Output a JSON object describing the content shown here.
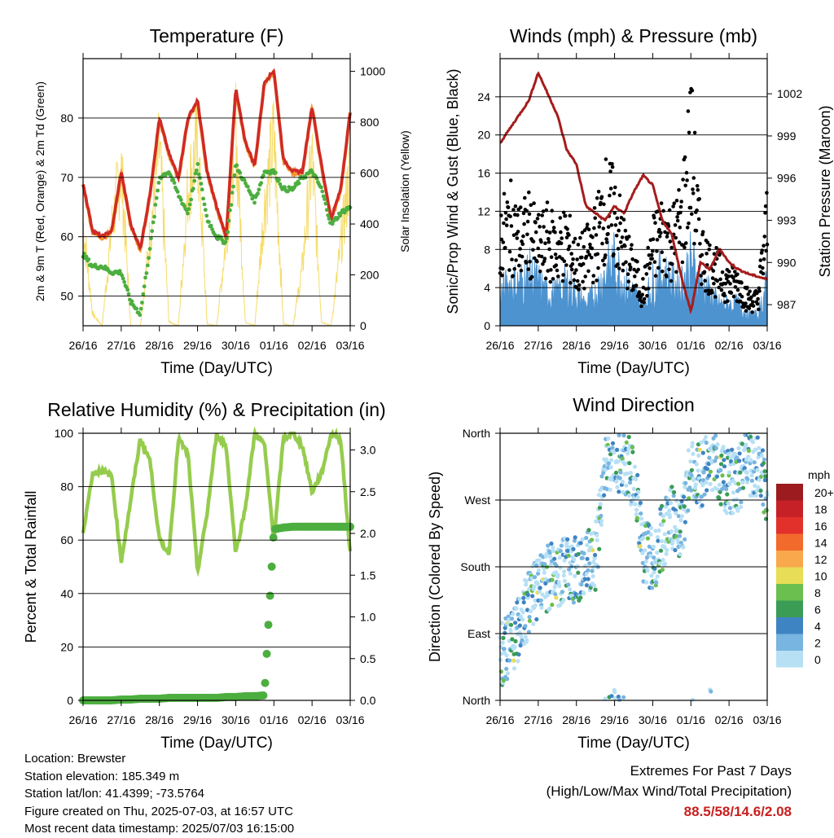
{
  "x_ticks": [
    "26/16",
    "27/16",
    "28/16",
    "29/16",
    "30/16",
    "01/16",
    "02/16",
    "03/16"
  ],
  "panels": {
    "temperature": {
      "title": "Temperature (F)",
      "ylabel": "2m & 9m T (Red, Orange) & 2m Td (Green)",
      "y2label": "Solar Insolation (Yellow)",
      "xlabel": "Time (Day/UTC)",
      "y_ticks": [
        "50",
        "60",
        "70",
        "80"
      ],
      "y2_ticks": [
        "0",
        "200",
        "400",
        "600",
        "800",
        "1000"
      ]
    },
    "winds": {
      "title": "Winds (mph) & Pressure (mb)",
      "ylabel": "Sonic/Prop Wind & Gust (Blue, Black)",
      "y2label": "Station Pressure (Maroon)",
      "xlabel": "Time (Day/UTC)",
      "y_ticks": [
        "0",
        "4",
        "8",
        "12",
        "16",
        "20",
        "24"
      ],
      "y2_ticks": [
        "987",
        "990",
        "993",
        "996",
        "999",
        "1002"
      ]
    },
    "humidity": {
      "title": "Relative Humidity (%) & Precipitation (in)",
      "ylabel": "Percent & Total Rainfall",
      "xlabel": "Time (Day/UTC)",
      "y_ticks": [
        "0",
        "20",
        "40",
        "60",
        "80",
        "100"
      ],
      "y2_ticks": [
        "0.0",
        "0.5",
        "1.0",
        "1.5",
        "2.0",
        "2.5",
        "3.0"
      ]
    },
    "direction": {
      "title": "Wind Direction",
      "ylabel": "Direction (Colored By Speed)",
      "xlabel": "Time (Day/UTC)",
      "y_ticks": [
        "North",
        "East",
        "South",
        "West",
        "North"
      ],
      "legend_title": "mph",
      "legend_labels": [
        "20+",
        "18",
        "16",
        "14",
        "12",
        "10",
        "8",
        "6",
        "4",
        "2",
        "0"
      ],
      "legend_colors": [
        "#9b1b1e",
        "#c62127",
        "#e2312b",
        "#f26a2c",
        "#f9a84b",
        "#e8dd57",
        "#6bbf4e",
        "#3a9c55",
        "#3f84c2",
        "#78b5e0",
        "#b7e0f5"
      ]
    }
  },
  "colors": {
    "temp_2m": "#cf2a27",
    "temp_9m": "#f59432",
    "dewpoint": "#4cae3f",
    "solar": "#f5dc6b",
    "wind": "#4d93d0",
    "gust": "#000000",
    "pressure": "#a61c1c",
    "rh": "#96cc4e",
    "precip": "#4cae3f"
  },
  "chart_data": [
    {
      "type": "line",
      "title": "Temperature (F)",
      "x": [
        "26/16",
        "26/22",
        "27/04",
        "27/10",
        "27/16",
        "27/22",
        "28/04",
        "28/10",
        "28/16",
        "28/22",
        "29/04",
        "29/10",
        "29/16",
        "29/22",
        "30/04",
        "30/10",
        "30/16",
        "30/22",
        "01/04",
        "01/10",
        "01/16",
        "01/22",
        "02/04",
        "02/10",
        "02/16",
        "02/22",
        "03/04",
        "03/10",
        "03/16"
      ],
      "series": [
        {
          "name": "2m T",
          "values": [
            69,
            61,
            60,
            61,
            71,
            62,
            58,
            67,
            80,
            74,
            70,
            80,
            83,
            71,
            65,
            60,
            85,
            76,
            72,
            86,
            88,
            73,
            71,
            71,
            82,
            72,
            63,
            68,
            81
          ]
        },
        {
          "name": "2m Td",
          "values": [
            57,
            55,
            55,
            54,
            54,
            49,
            47,
            58,
            70,
            71,
            67,
            64,
            72,
            63,
            60,
            59,
            72,
            69,
            66,
            71,
            71,
            68,
            68,
            70,
            71,
            68,
            62,
            64,
            65
          ]
        },
        {
          "name": "Solar Insolation",
          "axis": "right",
          "values": [
            520,
            60,
            0,
            500,
            800,
            0,
            0,
            450,
            900,
            20,
            0,
            700,
            920,
            10,
            0,
            450,
            1000,
            20,
            0,
            600,
            950,
            10,
            0,
            300,
            850,
            20,
            0,
            400,
            800
          ]
        }
      ],
      "ylim": [
        45,
        90
      ],
      "y2lim": [
        0,
        1050
      ]
    },
    {
      "type": "line",
      "title": "Winds (mph) & Pressure (mb)",
      "x": [
        "26/16",
        "26/22",
        "27/04",
        "27/10",
        "27/16",
        "27/22",
        "28/04",
        "28/10",
        "28/16",
        "28/22",
        "29/04",
        "29/10",
        "29/16",
        "29/22",
        "30/04",
        "30/10",
        "30/16",
        "30/22",
        "01/04",
        "01/10",
        "01/16",
        "01/22",
        "02/04",
        "02/10",
        "02/16",
        "02/22",
        "03/04",
        "03/10",
        "03/16"
      ],
      "series": [
        {
          "name": "Wind",
          "values": [
            3,
            4,
            4,
            5,
            4,
            3,
            3,
            4,
            3,
            2,
            3,
            5,
            6,
            4,
            3,
            2,
            4,
            5,
            4,
            4,
            6,
            4,
            3,
            2,
            2,
            2,
            1,
            1,
            4
          ]
        },
        {
          "name": "Gust",
          "values": [
            10,
            12,
            10,
            11,
            9,
            10,
            9,
            10,
            7,
            8,
            10,
            14,
            13,
            9,
            6,
            4,
            9,
            11,
            10,
            12,
            21,
            9,
            7,
            6,
            5,
            5,
            3,
            3,
            12
          ]
        },
        {
          "name": "Pressure",
          "axis": "right",
          "values": [
            998.5,
            999.5,
            1000.5,
            1001.5,
            1003.5,
            1002,
            1000.5,
            998,
            997,
            994,
            993.5,
            993,
            994,
            993.5,
            995,
            996.2,
            995.5,
            993,
            992,
            989,
            986.5,
            990,
            989.5,
            991,
            990,
            989.5,
            989.2,
            989,
            988.8
          ]
        }
      ],
      "ylim": [
        0,
        28
      ],
      "y2lim": [
        985.5,
        1004.5
      ]
    },
    {
      "type": "line",
      "title": "Relative Humidity (%) & Precipitation (in)",
      "x": [
        "26/16",
        "26/22",
        "27/04",
        "27/10",
        "27/16",
        "27/22",
        "28/04",
        "28/10",
        "28/16",
        "28/22",
        "29/04",
        "29/10",
        "29/16",
        "29/22",
        "30/04",
        "30/10",
        "30/16",
        "30/22",
        "01/04",
        "01/10",
        "01/16",
        "01/22",
        "02/04",
        "02/10",
        "02/16",
        "02/22",
        "03/04",
        "03/10",
        "03/16"
      ],
      "series": [
        {
          "name": "Relative Humidity",
          "values": [
            63,
            85,
            86,
            84,
            52,
            75,
            98,
            90,
            60,
            55,
            98,
            92,
            48,
            70,
            100,
            95,
            55,
            72,
            100,
            96,
            60,
            98,
            100,
            95,
            78,
            85,
            100,
            98,
            55
          ]
        },
        {
          "name": "Total Precipitation",
          "axis": "right",
          "values": [
            0,
            0,
            0,
            0,
            0.01,
            0.01,
            0.02,
            0.02,
            0.02,
            0.03,
            0.03,
            0.03,
            0.03,
            0.03,
            0.03,
            0.04,
            0.04,
            0.05,
            0.05,
            0.06,
            2.05,
            2.07,
            2.08,
            2.08,
            2.08,
            2.08,
            2.08,
            2.08,
            2.08
          ]
        }
      ],
      "ylim": [
        0,
        100
      ],
      "y2lim": [
        0,
        3.2
      ]
    },
    {
      "type": "scatter",
      "title": "Wind Direction",
      "x": [
        "26/16",
        "26/22",
        "27/04",
        "27/10",
        "27/16",
        "27/22",
        "28/04",
        "28/10",
        "28/16",
        "28/22",
        "29/04",
        "29/10",
        "29/16",
        "29/22",
        "30/04",
        "30/10",
        "30/16",
        "30/22",
        "01/04",
        "01/10",
        "01/16",
        "01/22",
        "02/04",
        "02/10",
        "02/16",
        "02/22",
        "03/04",
        "03/10",
        "03/16"
      ],
      "series": [
        {
          "name": "Direction",
          "values": [
            60,
            70,
            100,
            130,
            150,
            165,
            170,
            180,
            175,
            185,
            190,
            320,
            330,
            320,
            300,
            200,
            190,
            220,
            250,
            230,
            320,
            300,
            330,
            310,
            290,
            300,
            320,
            310,
            280
          ]
        }
      ],
      "ylim": [
        0,
        360
      ],
      "yticks": [
        "North",
        "East",
        "South",
        "West",
        "North"
      ],
      "colorbar": {
        "label": "mph",
        "levels": [
          "20+",
          "18",
          "16",
          "14",
          "12",
          "10",
          "8",
          "6",
          "4",
          "2",
          "0"
        ]
      }
    }
  ],
  "footer": {
    "location": "Location: Brewster",
    "elevation": "Station elevation: 185.349 m",
    "latlon": "Station lat/lon: 41.4399; -73.5764",
    "created": "Figure created on Thu, 2025-07-03, at 16:57 UTC",
    "recent": "Most recent data timestamp: 2025/07/03 16:15:00",
    "extremes_title": "Extremes For Past 7 Days",
    "extremes_sub": "(High/Low/Max Wind/Total Precipitation)",
    "extremes_values": "88.5/58/14.6/2.08"
  }
}
